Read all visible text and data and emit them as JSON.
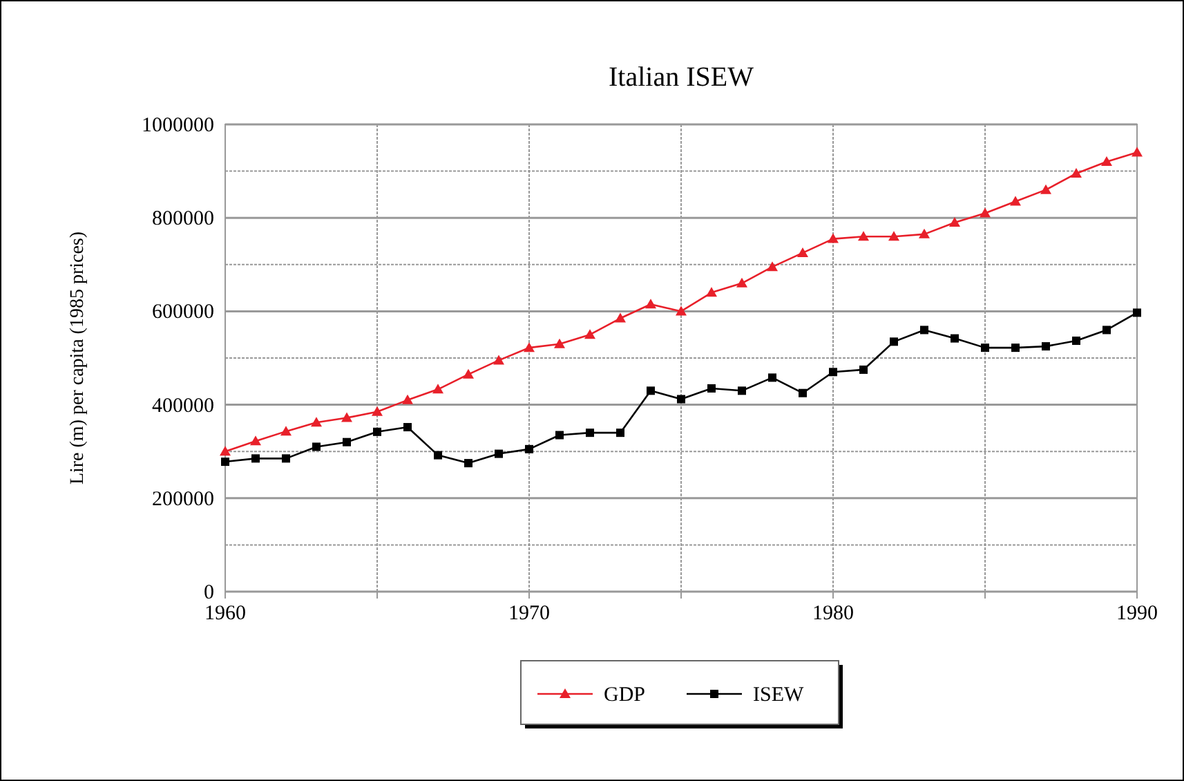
{
  "chart_data": {
    "type": "line",
    "title": "Italian ISEW",
    "ylabel": "Lire (m) per capita (1985 prices)",
    "x": [
      1960,
      1961,
      1962,
      1963,
      1964,
      1965,
      1966,
      1967,
      1968,
      1969,
      1970,
      1971,
      1972,
      1973,
      1974,
      1975,
      1976,
      1977,
      1978,
      1979,
      1980,
      1981,
      1982,
      1983,
      1984,
      1985,
      1986,
      1987,
      1988,
      1989,
      1990
    ],
    "series": [
      {
        "name": "GDP",
        "color": "#e8202a",
        "marker": "triangle",
        "values": [
          300000,
          322000,
          343000,
          362000,
          372000,
          385000,
          410000,
          433000,
          465000,
          495000,
          522000,
          530000,
          550000,
          585000,
          615000,
          600000,
          640000,
          660000,
          695000,
          725000,
          755000,
          760000,
          760000,
          765000,
          790000,
          810000,
          835000,
          860000,
          895000,
          920000,
          940000
        ]
      },
      {
        "name": "ISEW",
        "color": "#000000",
        "marker": "square",
        "values": [
          278000,
          285000,
          285000,
          310000,
          320000,
          342000,
          352000,
          292000,
          275000,
          295000,
          305000,
          335000,
          340000,
          340000,
          430000,
          412000,
          435000,
          430000,
          458000,
          425000,
          470000,
          475000,
          535000,
          560000,
          542000,
          522000,
          522000,
          525000,
          537000,
          560000,
          597000
        ]
      }
    ],
    "xlim": [
      1960,
      1990
    ],
    "xticks": [
      1960,
      {
        "value": 1965,
        "label": null
      },
      1970,
      {
        "value": 1975,
        "label": null
      },
      1980,
      {
        "value": 1985,
        "label": null
      },
      1990
    ],
    "ylim": [
      0,
      1000000
    ],
    "yticks": [
      0,
      {
        "value": 100000,
        "label": null
      },
      200000,
      {
        "value": 300000,
        "label": null
      },
      400000,
      {
        "value": 500000,
        "label": null
      },
      600000,
      {
        "value": 700000,
        "label": null
      },
      800000,
      {
        "value": 900000,
        "label": null
      },
      1000000
    ],
    "grid": true,
    "legend": "bottom",
    "line_style": "solid"
  }
}
